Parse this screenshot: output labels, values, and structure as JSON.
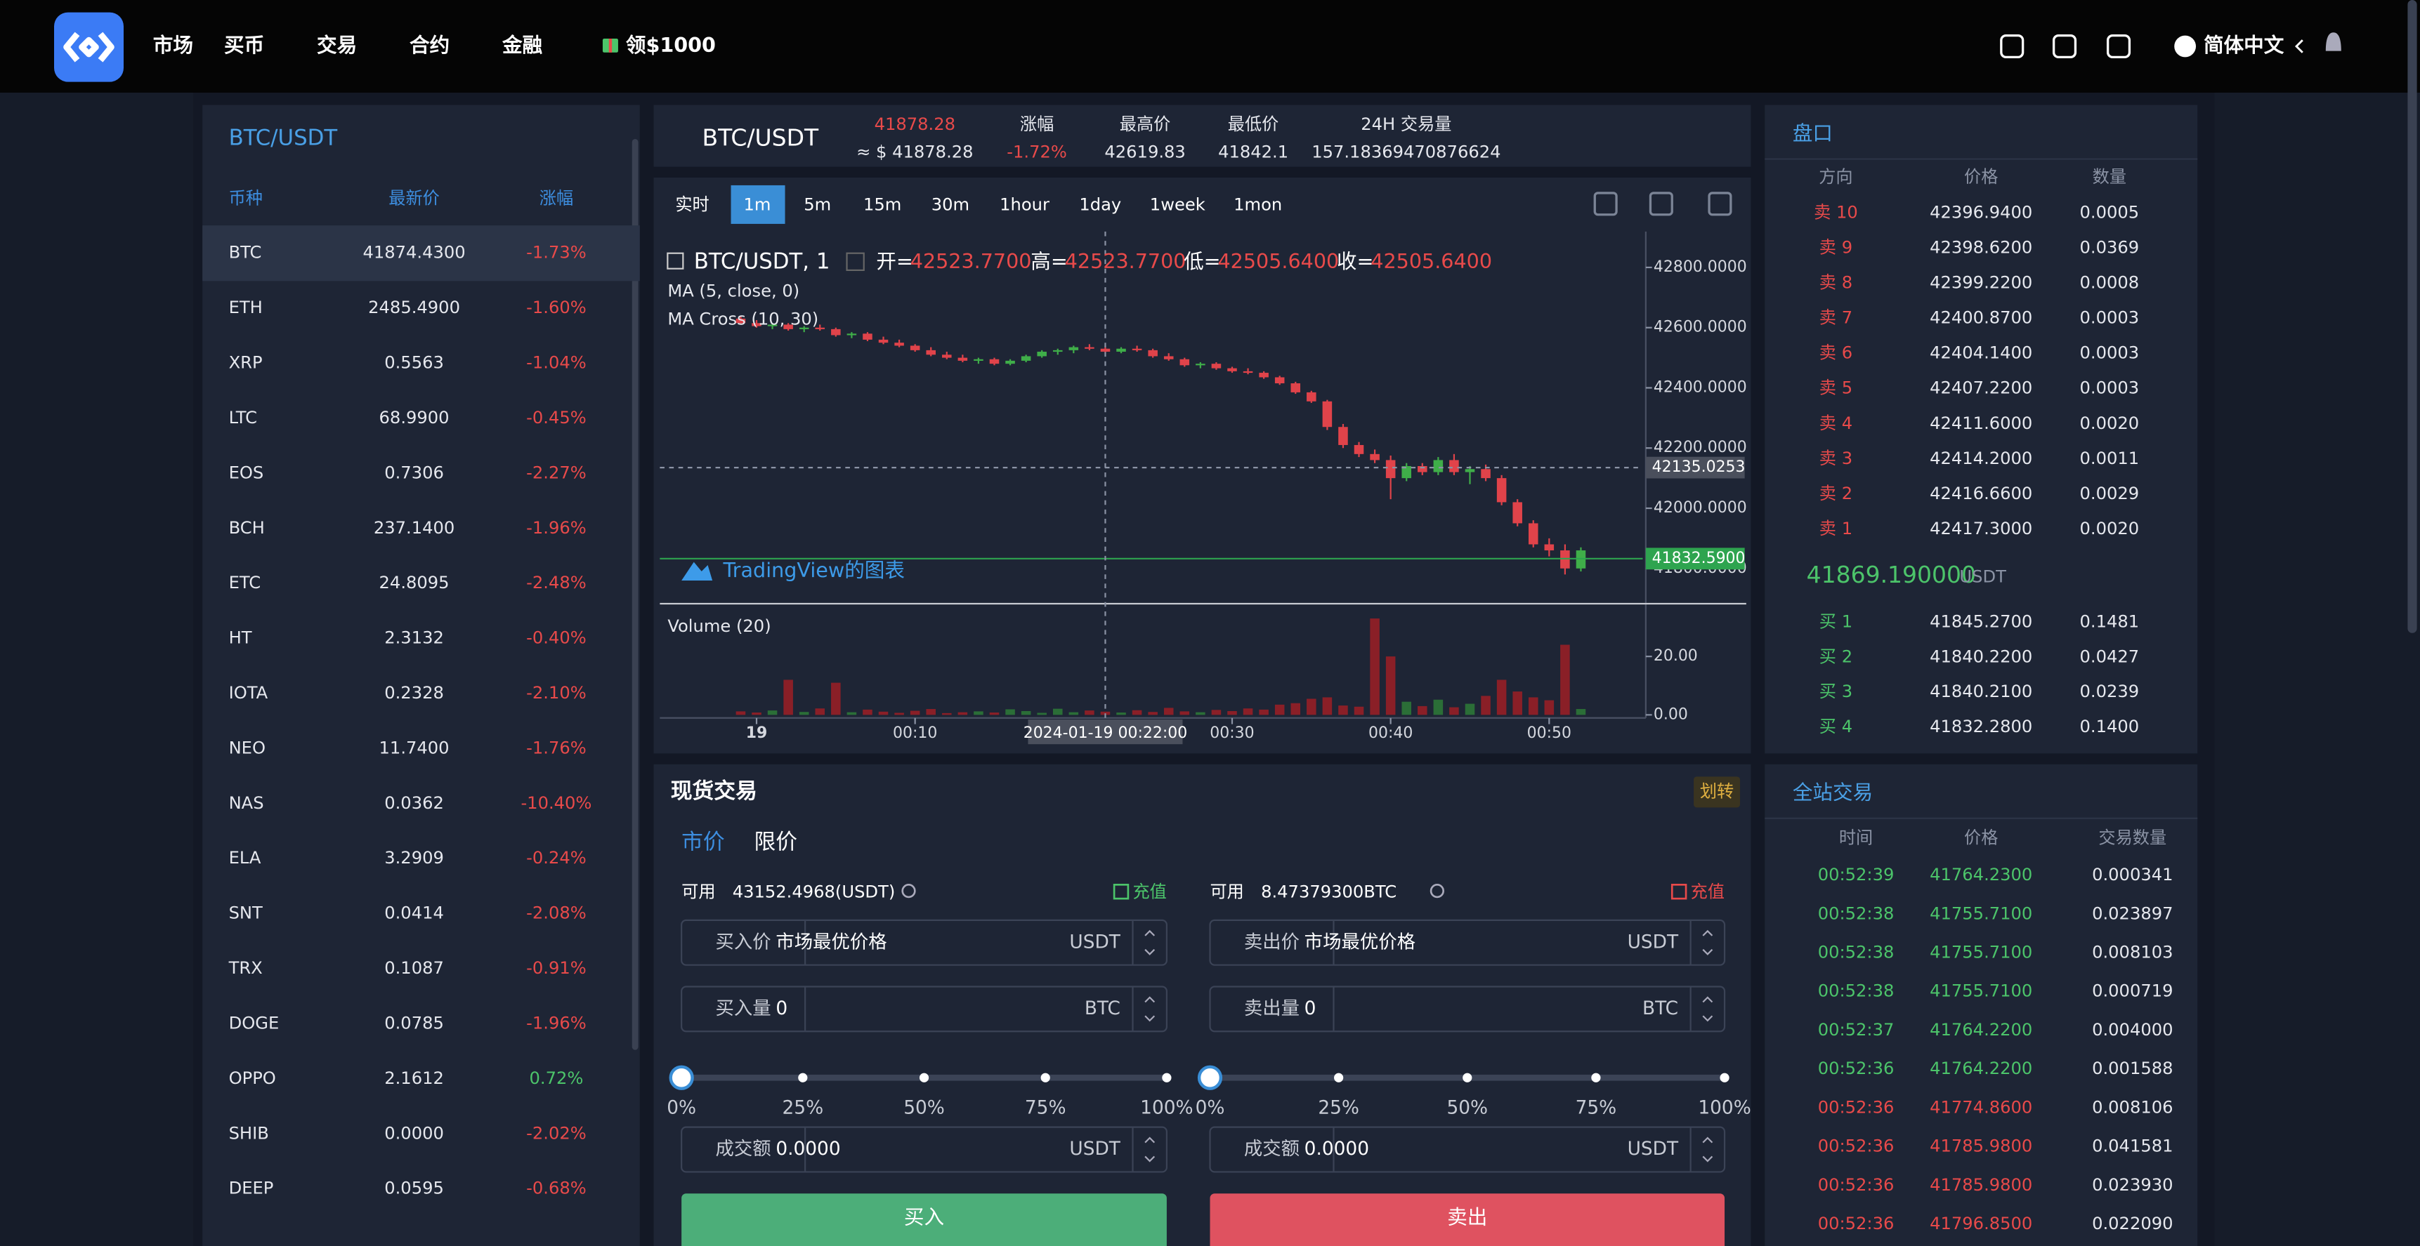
{
  "header": {
    "nav": [
      "市场",
      "买币",
      "交易",
      "合约",
      "金融"
    ],
    "promo": "领$1000",
    "language": "简体中文"
  },
  "market": {
    "title": "BTC/USDT",
    "columns": [
      "币种",
      "最新价",
      "涨幅"
    ],
    "rows": [
      [
        "BTC",
        "41874.4300",
        "-1.73%"
      ],
      [
        "ETH",
        "2485.4900",
        "-1.60%"
      ],
      [
        "XRP",
        "0.5563",
        "-1.04%"
      ],
      [
        "LTC",
        "68.9900",
        "-0.45%"
      ],
      [
        "EOS",
        "0.7306",
        "-2.27%"
      ],
      [
        "BCH",
        "237.1400",
        "-1.96%"
      ],
      [
        "ETC",
        "24.8095",
        "-2.48%"
      ],
      [
        "HT",
        "2.3132",
        "-0.40%"
      ],
      [
        "IOTA",
        "0.2328",
        "-2.10%"
      ],
      [
        "NEO",
        "11.7400",
        "-1.76%"
      ],
      [
        "NAS",
        "0.0362",
        "-10.40%"
      ],
      [
        "ELA",
        "3.2909",
        "-0.24%"
      ],
      [
        "SNT",
        "0.0414",
        "-2.08%"
      ],
      [
        "TRX",
        "0.1087",
        "-0.91%"
      ],
      [
        "DOGE",
        "0.0785",
        "-1.96%"
      ],
      [
        "OPPO",
        "2.1612",
        "0.72%"
      ],
      [
        "SHIB",
        "0.0000",
        "-2.02%"
      ],
      [
        "DEEP",
        "0.0595",
        "-0.68%"
      ]
    ]
  },
  "ticker": {
    "pair": "BTC/USDT",
    "last": "41878.28",
    "last_usd": "≈ $ 41878.28",
    "stats": [
      {
        "label": "涨幅",
        "value": "-1.72%"
      },
      {
        "label": "最高价",
        "value": "42619.83"
      },
      {
        "label": "最低价",
        "value": "41842.1"
      },
      {
        "label": "24H 交易量",
        "value": "157.18369470876624"
      }
    ]
  },
  "kline": {
    "intervals": [
      "实时",
      "1m",
      "5m",
      "15m",
      "30m",
      "1hour",
      "1day",
      "1week",
      "1mon"
    ],
    "active_interval": "1m",
    "legend": {
      "symbol": "BTC/USDT, 1",
      "open_label": "开=",
      "open": "42523.7700",
      "high_label": "高=",
      "high": "42523.7700",
      "low_label": "低=",
      "low": "42505.6400",
      "close_label": "收=",
      "close": "42505.6400"
    },
    "studies": [
      "MA (5, close, 0)",
      "MA Cross (10, 30)"
    ],
    "watermark": "TradingView的图表",
    "volume_title": "Volume (20)",
    "up_color": "#3fae49",
    "down_color": "#e0434a",
    "up_volume_color": "#2b6e37",
    "down_volume_color": "#8a1f27",
    "ylim": [
      41688,
      42919
    ],
    "yticks": [
      {
        "value": 41800,
        "label": "41800.0000"
      },
      {
        "value": 42000,
        "label": "42000.0000"
      },
      {
        "value": 42200,
        "label": "42200.0000"
      },
      {
        "value": 42400,
        "label": "42400.0000"
      },
      {
        "value": 42600,
        "label": "42600.0000"
      },
      {
        "value": 42800,
        "label": "42800.0000"
      }
    ],
    "price_markers": [
      {
        "value": 42135.0253,
        "label": "42135.0253",
        "color": "#4a4f5c"
      },
      {
        "value": 41832.59,
        "label": "41832.5900",
        "color": "#2ea44f"
      }
    ],
    "volume_ylim": [
      0,
      37
    ],
    "volume_yticks": [
      {
        "value": 20,
        "label": "20.00"
      },
      {
        "value": 0,
        "label": "0.00"
      }
    ],
    "xlim": [
      -6.1,
      55.9
    ],
    "xticks": [
      {
        "value": 0,
        "label": "19"
      },
      {
        "value": 10,
        "label": "00:10"
      },
      {
        "value": 30,
        "label": "00:30"
      },
      {
        "value": 40,
        "label": "00:40"
      },
      {
        "value": 50,
        "label": "00:50"
      }
    ],
    "crosshair": {
      "x": 22,
      "label": "2024-01-19 00:22:00"
    },
    "candles": [
      [
        -1,
        42630,
        42640,
        42610,
        42615
      ],
      [
        0,
        42615,
        42625,
        42600,
        42605
      ],
      [
        1,
        42605,
        42615,
        42595,
        42610
      ],
      [
        2,
        42610,
        42615,
        42590,
        42595
      ],
      [
        3,
        42595,
        42605,
        42585,
        42600
      ],
      [
        4,
        42600,
        42610,
        42590,
        42595
      ],
      [
        5,
        42595,
        42600,
        42570,
        42575
      ],
      [
        6,
        42575,
        42585,
        42565,
        42580
      ],
      [
        7,
        42580,
        42585,
        42555,
        42560
      ],
      [
        8,
        42560,
        42570,
        42545,
        42550
      ],
      [
        9,
        42550,
        42560,
        42535,
        42540
      ],
      [
        10,
        42540,
        42545,
        42520,
        42525
      ],
      [
        11,
        42525,
        42535,
        42505,
        42510
      ],
      [
        12,
        42510,
        42520,
        42495,
        42500
      ],
      [
        13,
        42500,
        42510,
        42485,
        42490
      ],
      [
        14,
        42490,
        42500,
        42480,
        42495
      ],
      [
        15,
        42495,
        42500,
        42475,
        42480
      ],
      [
        16,
        42480,
        42495,
        42475,
        42490
      ],
      [
        17,
        42490,
        42510,
        42485,
        42505
      ],
      [
        18,
        42505,
        42525,
        42500,
        42520
      ],
      [
        19,
        42520,
        42530,
        42510,
        42525
      ],
      [
        20,
        42525,
        42540,
        42515,
        42535
      ],
      [
        21,
        42535,
        42545,
        42525,
        42530
      ],
      [
        22,
        42530,
        42540,
        42515,
        42520
      ],
      [
        23,
        42520,
        42535,
        42515,
        42530
      ],
      [
        24,
        42530,
        42540,
        42520,
        42525
      ],
      [
        25,
        42525,
        42530,
        42500,
        42505
      ],
      [
        26,
        42505,
        42515,
        42490,
        42495
      ],
      [
        27,
        42495,
        42500,
        42470,
        42475
      ],
      [
        28,
        42475,
        42485,
        42465,
        42480
      ],
      [
        29,
        42480,
        42485,
        42460,
        42465
      ],
      [
        30,
        42465,
        42470,
        42450,
        42455
      ],
      [
        31,
        42455,
        42465,
        42445,
        42450
      ],
      [
        32,
        42450,
        42455,
        42430,
        42435
      ],
      [
        33,
        42435,
        42440,
        42410,
        42415
      ],
      [
        34,
        42415,
        42420,
        42380,
        42385
      ],
      [
        35,
        42385,
        42390,
        42350,
        42355
      ],
      [
        36,
        42355,
        42360,
        42260,
        42270
      ],
      [
        37,
        42270,
        42280,
        42200,
        42210
      ],
      [
        38,
        42210,
        42220,
        42170,
        42180
      ],
      [
        39,
        42180,
        42195,
        42150,
        42160
      ],
      [
        40,
        42160,
        42175,
        42030,
        42100
      ],
      [
        41,
        42100,
        42150,
        42090,
        42140
      ],
      [
        42,
        42140,
        42150,
        42110,
        42120
      ],
      [
        43,
        42120,
        42170,
        42110,
        42160
      ],
      [
        44,
        42160,
        42180,
        42110,
        42120
      ],
      [
        45,
        42120,
        42140,
        42080,
        42130
      ],
      [
        46,
        42130,
        42145,
        42090,
        42100
      ],
      [
        47,
        42100,
        42110,
        42010,
        42020
      ],
      [
        48,
        42020,
        42030,
        41940,
        41950
      ],
      [
        49,
        41950,
        41960,
        41870,
        41880
      ],
      [
        50,
        41880,
        41900,
        41840,
        41860
      ],
      [
        51,
        41860,
        41880,
        41780,
        41800
      ],
      [
        52,
        41800,
        41870,
        41790,
        41860
      ]
    ],
    "volumes": [
      1.2,
      0.8,
      1.5,
      12,
      1.0,
      2.2,
      11,
      0.9,
      1.8,
      1.1,
      0.7,
      1.4,
      2.0,
      0.6,
      0.9,
      1.2,
      0.8,
      1.9,
      1.3,
      0.7,
      2.1,
      0.9,
      1.5,
      1.1,
      0.8,
      1.6,
      1.0,
      2.4,
      1.2,
      0.9,
      1.7,
      1.3,
      2.2,
      1.8,
      3.5,
      4.0,
      5.5,
      6.0,
      3.2,
      2.8,
      33,
      20,
      4.5,
      3.0,
      5.2,
      2.6,
      3.8,
      6.5,
      12,
      8.0,
      6.0,
      5.0,
      24,
      2.0
    ]
  },
  "orderbook": {
    "title": "盘口",
    "columns": [
      "方向",
      "价格",
      "数量"
    ],
    "asks": [
      [
        "卖 10",
        "42396.9400",
        "0.0005"
      ],
      [
        "卖 9",
        "42398.6200",
        "0.0369"
      ],
      [
        "卖 8",
        "42399.2200",
        "0.0008"
      ],
      [
        "卖 7",
        "42400.8700",
        "0.0003"
      ],
      [
        "卖 6",
        "42404.1400",
        "0.0003"
      ],
      [
        "卖 5",
        "42407.2200",
        "0.0003"
      ],
      [
        "卖 4",
        "42411.6000",
        "0.0020"
      ],
      [
        "卖 3",
        "42414.2000",
        "0.0011"
      ],
      [
        "卖 2",
        "42416.6600",
        "0.0029"
      ],
      [
        "卖 1",
        "42417.3000",
        "0.0020"
      ]
    ],
    "last_price": "41869.190000",
    "last_unit": "USDT",
    "bids": [
      [
        "买 1",
        "41845.2700",
        "0.1481"
      ],
      [
        "买 2",
        "41840.2200",
        "0.0427"
      ],
      [
        "买 3",
        "41840.2100",
        "0.0239"
      ],
      [
        "买 4",
        "41832.2800",
        "0.1400"
      ]
    ]
  },
  "trades": {
    "title": "全站交易",
    "columns": [
      "时间",
      "价格",
      "交易数量"
    ],
    "rows": [
      [
        "00:52:39",
        "41764.2300",
        "0.000341"
      ],
      [
        "00:52:38",
        "41755.7100",
        "0.023897"
      ],
      [
        "00:52:38",
        "41755.7100",
        "0.008103"
      ],
      [
        "00:52:38",
        "41755.7100",
        "0.000719"
      ],
      [
        "00:52:37",
        "41764.2200",
        "0.004000"
      ],
      [
        "00:52:36",
        "41764.2200",
        "0.001588"
      ],
      [
        "00:52:36",
        "41774.8600",
        "0.008106"
      ],
      [
        "00:52:36",
        "41785.9800",
        "0.041581"
      ],
      [
        "00:52:36",
        "41785.9800",
        "0.023930"
      ],
      [
        "00:52:36",
        "41796.8500",
        "0.022090"
      ]
    ],
    "row_colors": [
      "#4cc46a",
      "#4cc46a",
      "#4cc46a",
      "#4cc46a",
      "#4cc46a",
      "#4cc46a",
      "#e84a4a",
      "#e84a4a",
      "#e84a4a",
      "#e84a4a"
    ]
  },
  "trade_form": {
    "title": "现货交易",
    "transfer": "划转",
    "tabs": [
      "市价",
      "限价"
    ],
    "buy": {
      "available_label": "可用",
      "available": "43152.4968(USDT)",
      "deposit": "充值",
      "price_label": "买入价",
      "price": "市场最优价格",
      "price_unit": "USDT",
      "amount_label": "买入量",
      "amount": "0",
      "amount_unit": "BTC",
      "percents": [
        "0%",
        "25%",
        "50%",
        "75%",
        "100%"
      ],
      "total_label": "成交额",
      "total": "0.0000",
      "total_unit": "USDT",
      "submit": "买入"
    },
    "sell": {
      "available_label": "可用",
      "available": "8.47379300BTC",
      "deposit": "充值",
      "price_label": "卖出价",
      "price": "市场最优价格",
      "price_unit": "USDT",
      "amount_label": "卖出量",
      "amount": "0",
      "amount_unit": "BTC",
      "percents": [
        "0%",
        "25%",
        "50%",
        "75%",
        "100%"
      ],
      "total_label": "成交额",
      "total": "0.0000",
      "total_unit": "USDT",
      "submit": "卖出"
    }
  }
}
